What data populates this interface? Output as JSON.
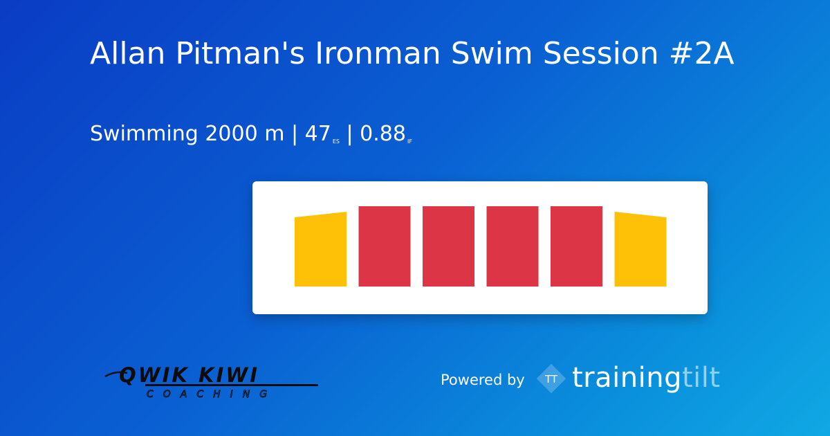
{
  "header": {
    "title": "Allan Pitman's Ironman Swim Session #2A",
    "sport": "Swimming",
    "distance": "2000 m",
    "separator": "|",
    "es_value": "47",
    "es_unit": "ES",
    "if_value": "0.88",
    "if_unit": "IF"
  },
  "workout_blocks": [
    {
      "zone": "yellow",
      "color": "#ffc107",
      "shape": "ramp-up"
    },
    {
      "zone": "red",
      "color": "#dc3545",
      "shape": "flat"
    },
    {
      "zone": "red",
      "color": "#dc3545",
      "shape": "flat"
    },
    {
      "zone": "red",
      "color": "#dc3545",
      "shape": "flat"
    },
    {
      "zone": "red",
      "color": "#dc3545",
      "shape": "flat"
    },
    {
      "zone": "yellow",
      "color": "#ffc107",
      "shape": "ramp-down"
    }
  ],
  "footer": {
    "coach_logo_top": "QWIK KIWI",
    "coach_logo_bottom": "COACHING",
    "powered_by": "Powered by",
    "brand_mark": "TT",
    "brand_part1": "training",
    "brand_part2": "tilt"
  },
  "colors": {
    "background_start": "#0a3cc4",
    "background_end": "#10a8e4",
    "zone_yellow": "#ffc107",
    "zone_red": "#dc3545",
    "brand_light": "#8fd0f3"
  }
}
